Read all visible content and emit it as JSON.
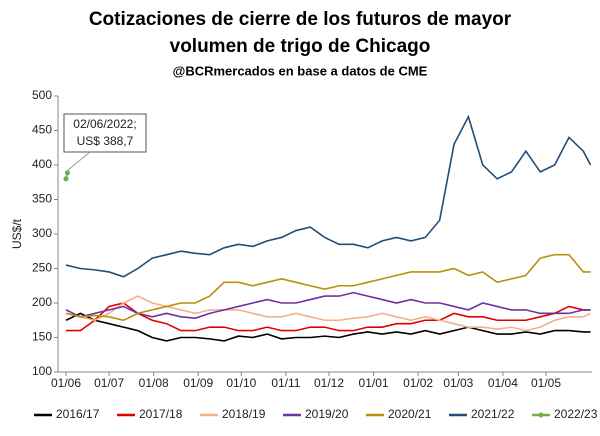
{
  "chart_data": {
    "type": "line",
    "title": "Cotizaciones de cierre de los futuros de mayor",
    "title_line2": "volumen de trigo de Chicago",
    "subtitle": "@BCRmercados en base a datos de CME",
    "y_label": "US$/t",
    "annotation": [
      "02/06/2022;",
      "US$ 388,7"
    ],
    "xlim": [
      0,
      366
    ],
    "xticks": [
      {
        "value": 0,
        "label": "01/06"
      },
      {
        "value": 30,
        "label": "01/07"
      },
      {
        "value": 61,
        "label": "01/08"
      },
      {
        "value": 92,
        "label": "01/09"
      },
      {
        "value": 122,
        "label": "01/10"
      },
      {
        "value": 153,
        "label": "01/11"
      },
      {
        "value": 183,
        "label": "01/12"
      },
      {
        "value": 214,
        "label": "01/01"
      },
      {
        "value": 245,
        "label": "01/02"
      },
      {
        "value": 273,
        "label": "01/03"
      },
      {
        "value": 304,
        "label": "01/04"
      },
      {
        "value": 334,
        "label": "01/05"
      }
    ],
    "ylim": [
      100,
      500
    ],
    "yticks": [
      100,
      150,
      200,
      250,
      300,
      350,
      400,
      450,
      500
    ],
    "grid": false,
    "x": [
      0,
      10,
      20,
      30,
      40,
      50,
      60,
      70,
      80,
      90,
      100,
      110,
      120,
      130,
      140,
      150,
      160,
      170,
      180,
      190,
      200,
      210,
      220,
      230,
      240,
      250,
      260,
      270,
      280,
      290,
      300,
      310,
      320,
      330,
      340,
      350,
      360,
      365
    ],
    "series": [
      {
        "name": "2016/17",
        "color": "#000000",
        "values": [
          175,
          185,
          175,
          170,
          165,
          160,
          150,
          145,
          150,
          150,
          148,
          145,
          152,
          150,
          155,
          148,
          150,
          150,
          152,
          150,
          155,
          158,
          155,
          158,
          155,
          160,
          155,
          160,
          165,
          160,
          155,
          155,
          158,
          155,
          160,
          160,
          158,
          158
        ]
      },
      {
        "name": "2017/18",
        "color": "#e00000",
        "values": [
          160,
          160,
          175,
          195,
          200,
          185,
          175,
          170,
          160,
          160,
          165,
          165,
          160,
          160,
          165,
          160,
          160,
          165,
          165,
          160,
          160,
          165,
          165,
          170,
          170,
          175,
          175,
          185,
          180,
          180,
          175,
          175,
          175,
          180,
          185,
          195,
          190,
          190
        ]
      },
      {
        "name": "2018/19",
        "color": "#f4b183",
        "values": [
          185,
          180,
          175,
          185,
          200,
          210,
          200,
          195,
          190,
          185,
          190,
          190,
          190,
          185,
          180,
          180,
          185,
          180,
          175,
          175,
          178,
          180,
          185,
          180,
          175,
          180,
          175,
          170,
          165,
          165,
          162,
          165,
          160,
          165,
          175,
          180,
          180,
          185
        ]
      },
      {
        "name": "2019/20",
        "color": "#7030a0",
        "values": [
          190,
          180,
          185,
          190,
          195,
          185,
          180,
          185,
          180,
          178,
          185,
          190,
          195,
          200,
          205,
          200,
          200,
          205,
          210,
          210,
          215,
          210,
          205,
          200,
          205,
          200,
          200,
          195,
          190,
          200,
          195,
          190,
          190,
          185,
          185,
          185,
          190,
          190
        ]
      },
      {
        "name": "2020/21",
        "color": "#b8900b",
        "values": [
          185,
          180,
          182,
          180,
          175,
          185,
          190,
          195,
          200,
          200,
          210,
          230,
          230,
          225,
          230,
          235,
          230,
          225,
          220,
          225,
          225,
          230,
          235,
          240,
          245,
          245,
          245,
          250,
          240,
          245,
          230,
          235,
          240,
          265,
          270,
          270,
          245,
          245
        ]
      },
      {
        "name": "2021/22",
        "color": "#1f4e79",
        "values": [
          255,
          250,
          248,
          245,
          238,
          250,
          265,
          270,
          275,
          272,
          270,
          280,
          285,
          282,
          290,
          295,
          305,
          310,
          295,
          285,
          285,
          280,
          290,
          295,
          290,
          295,
          320,
          430,
          470,
          400,
          380,
          390,
          420,
          390,
          400,
          440,
          420,
          400
        ]
      },
      {
        "name": "2022/23",
        "color": "#70ad47",
        "x": [
          0,
          1
        ],
        "values": [
          380,
          388.7
        ]
      }
    ]
  }
}
